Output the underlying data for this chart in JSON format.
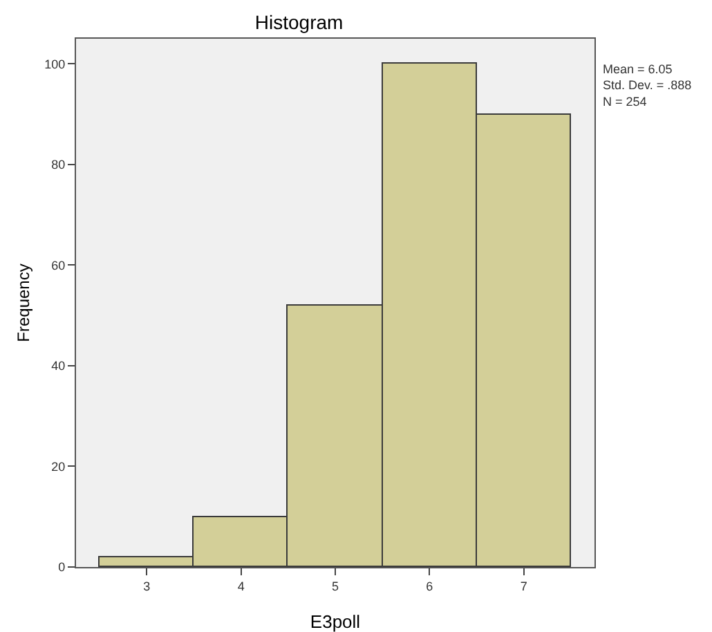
{
  "chart_data": {
    "type": "histogram",
    "title": "Histogram",
    "xlabel": "E3poll",
    "ylabel": "Frequency",
    "bins": [
      2.5,
      3.5,
      4.5,
      5.5,
      6.5,
      7.5
    ],
    "values": [
      2,
      10,
      52,
      100,
      90
    ],
    "color": "#d3cf98",
    "xlim": [
      2.25,
      7.75
    ],
    "xticks": [
      3,
      4,
      5,
      6,
      7
    ],
    "ylim": [
      0,
      105
    ],
    "yticks": [
      0,
      20,
      40,
      60,
      80,
      100
    ],
    "grid": false,
    "annotations": [
      "Mean = 6.05",
      "Std. Dev. = .888",
      "N = 254"
    ]
  }
}
